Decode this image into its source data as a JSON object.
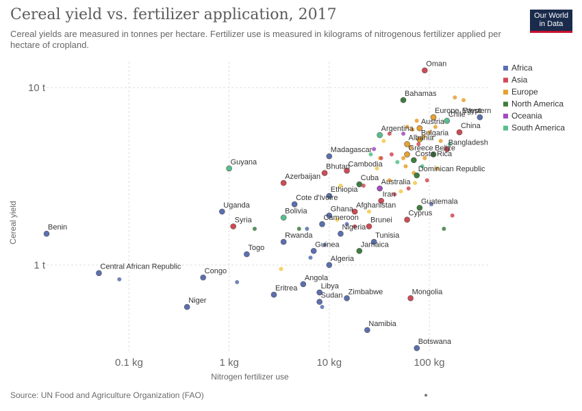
{
  "header": {
    "title": "Cereal yield vs. fertilizer application, 2017",
    "subtitle": "Cereal yields are measured in tonnes per hectare. Fertilizer use is measured in kilograms of nitrogenous fertilizer applied per hectare of cropland.",
    "logo_line1": "Our World",
    "logo_line2": "in Data"
  },
  "footer": {
    "source": "Source: UN Food and Agriculture Organization (FAO)"
  },
  "colors": {
    "Africa": "#5b6fb0",
    "Asia": "#d04a55",
    "Europe": "#e8a030",
    "North America": "#3f7d3f",
    "Oceania": "#a04cc0",
    "South America": "#55c08a",
    "Europe_light": "#f2c94c"
  },
  "chart_data": {
    "type": "scatter",
    "title": "Cereal yield vs. fertilizer application, 2017",
    "xlabel": "Nitrogen fertilizer use",
    "ylabel": "Cereal yield",
    "x_scale": "log",
    "y_scale": "log",
    "xlim": [
      0.015,
      400
    ],
    "ylim": [
      0.32,
      14
    ],
    "x_ticks": [
      {
        "value": 0.1,
        "label": "0.1 kg"
      },
      {
        "value": 1,
        "label": "1 kg"
      },
      {
        "value": 10,
        "label": "10 kg"
      },
      {
        "value": 100,
        "label": "100 kg"
      }
    ],
    "y_ticks": [
      {
        "value": 1,
        "label": "1 t"
      },
      {
        "value": 10,
        "label": "10 t"
      }
    ],
    "legend": [
      "Africa",
      "Asia",
      "Europe",
      "North America",
      "Oceania",
      "South America"
    ],
    "legend_position": "right",
    "labeled_points": [
      {
        "name": "Oman",
        "x": 90,
        "y": 12.5,
        "group": "Asia"
      },
      {
        "name": "Bahamas",
        "x": 55,
        "y": 8.5,
        "group": "North America"
      },
      {
        "name": "Egypt",
        "x": 320,
        "y": 6.8,
        "group": "Africa"
      },
      {
        "name": "Europe, Western",
        "x": 110,
        "y": 6.8,
        "group": "Europe"
      },
      {
        "name": "Chile",
        "x": 150,
        "y": 6.5,
        "group": "South America"
      },
      {
        "name": "Austria",
        "x": 80,
        "y": 5.9,
        "group": "Europe"
      },
      {
        "name": "China",
        "x": 200,
        "y": 5.6,
        "group": "Asia"
      },
      {
        "name": "Argentina",
        "x": 32,
        "y": 5.4,
        "group": "South America"
      },
      {
        "name": "Bulgaria",
        "x": 80,
        "y": 5.1,
        "group": "Europe"
      },
      {
        "name": "Albania",
        "x": 60,
        "y": 4.8,
        "group": "Europe"
      },
      {
        "name": "Bangladesh",
        "x": 150,
        "y": 4.5,
        "group": "Asia"
      },
      {
        "name": "Madagascar",
        "x": 10,
        "y": 4.1,
        "group": "Africa"
      },
      {
        "name": "Greece",
        "x": 60,
        "y": 4.2,
        "group": "Europe"
      },
      {
        "name": "Belize",
        "x": 110,
        "y": 4.2,
        "group": "North America"
      },
      {
        "name": "Costa Rica",
        "x": 70,
        "y": 3.9,
        "group": "North America"
      },
      {
        "name": "Guyana",
        "x": 1.0,
        "y": 3.5,
        "group": "South America"
      },
      {
        "name": "Cambodia",
        "x": 15,
        "y": 3.4,
        "group": "Asia"
      },
      {
        "name": "Bhutan",
        "x": 9,
        "y": 3.3,
        "group": "Asia"
      },
      {
        "name": "Dominican Republic",
        "x": 75,
        "y": 3.2,
        "group": "North America"
      },
      {
        "name": "Azerbaijan",
        "x": 3.5,
        "y": 2.9,
        "group": "Asia"
      },
      {
        "name": "Cuba",
        "x": 20,
        "y": 2.85,
        "group": "North America"
      },
      {
        "name": "Australia",
        "x": 32,
        "y": 2.7,
        "group": "Oceania"
      },
      {
        "name": "Ethiopia",
        "x": 10,
        "y": 2.45,
        "group": "Africa"
      },
      {
        "name": "Iran",
        "x": 33,
        "y": 2.3,
        "group": "Asia"
      },
      {
        "name": "Cote d'Ivoire",
        "x": 4.5,
        "y": 2.2,
        "group": "Africa"
      },
      {
        "name": "Guatemala",
        "x": 80,
        "y": 2.1,
        "group": "North America"
      },
      {
        "name": "Uganda",
        "x": 0.85,
        "y": 2.0,
        "group": "Africa"
      },
      {
        "name": "Afghanistan",
        "x": 18,
        "y": 2.0,
        "group": "Asia"
      },
      {
        "name": "Ghana",
        "x": 10,
        "y": 1.9,
        "group": "Africa"
      },
      {
        "name": "Bolivia",
        "x": 3.5,
        "y": 1.85,
        "group": "South America"
      },
      {
        "name": "Cyprus",
        "x": 60,
        "y": 1.8,
        "group": "Asia"
      },
      {
        "name": "Cameroon",
        "x": 8.5,
        "y": 1.7,
        "group": "Africa"
      },
      {
        "name": "Brunei",
        "x": 25,
        "y": 1.65,
        "group": "Asia"
      },
      {
        "name": "Syria",
        "x": 1.1,
        "y": 1.65,
        "group": "Asia"
      },
      {
        "name": "Nigeria",
        "x": 13,
        "y": 1.5,
        "group": "Africa"
      },
      {
        "name": "Benin",
        "x": 0.015,
        "y": 1.5,
        "group": "Africa"
      },
      {
        "name": "Tunisia",
        "x": 28,
        "y": 1.35,
        "group": "Africa"
      },
      {
        "name": "Rwanda",
        "x": 3.5,
        "y": 1.35,
        "group": "Africa"
      },
      {
        "name": "Guinea",
        "x": 7,
        "y": 1.2,
        "group": "Africa"
      },
      {
        "name": "Jamaica",
        "x": 20,
        "y": 1.2,
        "group": "North America"
      },
      {
        "name": "Togo",
        "x": 1.5,
        "y": 1.15,
        "group": "Africa"
      },
      {
        "name": "Algeria",
        "x": 10,
        "y": 1.0,
        "group": "Africa"
      },
      {
        "name": "Central African Republic",
        "x": 0.05,
        "y": 0.9,
        "group": "Africa"
      },
      {
        "name": "Congo",
        "x": 0.55,
        "y": 0.85,
        "group": "Africa"
      },
      {
        "name": "Angola",
        "x": 5.5,
        "y": 0.78,
        "group": "Africa"
      },
      {
        "name": "Libya",
        "x": 8,
        "y": 0.7,
        "group": "Africa"
      },
      {
        "name": "Eritrea",
        "x": 2.8,
        "y": 0.68,
        "group": "Africa"
      },
      {
        "name": "Zimbabwe",
        "x": 15,
        "y": 0.65,
        "group": "Africa"
      },
      {
        "name": "Mongolia",
        "x": 65,
        "y": 0.65,
        "group": "Asia"
      },
      {
        "name": "Sudan",
        "x": 8,
        "y": 0.62,
        "group": "Africa"
      },
      {
        "name": "Niger",
        "x": 0.38,
        "y": 0.58,
        "group": "Africa"
      },
      {
        "name": "Namibia",
        "x": 24,
        "y": 0.43,
        "group": "Africa"
      },
      {
        "name": "Botswana",
        "x": 75,
        "y": 0.34,
        "group": "Africa"
      }
    ],
    "unlabeled_points": [
      {
        "x": 0.08,
        "y": 0.83,
        "group": "Africa"
      },
      {
        "x": 1.2,
        "y": 0.8,
        "group": "Africa"
      },
      {
        "x": 1.8,
        "y": 1.6,
        "group": "North America"
      },
      {
        "x": 3.3,
        "y": 0.95,
        "group": "Europe"
      },
      {
        "x": 5.0,
        "y": 1.6,
        "group": "North America"
      },
      {
        "x": 6.0,
        "y": 1.6,
        "group": "Africa"
      },
      {
        "x": 6.5,
        "y": 1.1,
        "group": "Africa"
      },
      {
        "x": 8.5,
        "y": 0.58,
        "group": "Africa"
      },
      {
        "x": 9,
        "y": 1.3,
        "group": "Africa"
      },
      {
        "x": 10,
        "y": 1.0,
        "group": "Africa"
      },
      {
        "x": 12,
        "y": 1.8,
        "group": "Europe"
      },
      {
        "x": 13,
        "y": 2.8,
        "group": "Europe"
      },
      {
        "x": 15,
        "y": 1.7,
        "group": "Africa"
      },
      {
        "x": 18,
        "y": 1.65,
        "group": "Asia"
      },
      {
        "x": 22,
        "y": 2.8,
        "group": "Asia"
      },
      {
        "x": 25,
        "y": 2.0,
        "group": "Europe"
      },
      {
        "x": 28,
        "y": 4.5,
        "group": "Oceania"
      },
      {
        "x": 30,
        "y": 3.5,
        "group": "Europe"
      },
      {
        "x": 32,
        "y": 4.0,
        "group": "Europe"
      },
      {
        "x": 35,
        "y": 5.0,
        "group": "Europe"
      },
      {
        "x": 40,
        "y": 3.0,
        "group": "Europe"
      },
      {
        "x": 42,
        "y": 4.2,
        "group": "Asia"
      },
      {
        "x": 45,
        "y": 2.5,
        "group": "Asia"
      },
      {
        "x": 48,
        "y": 3.8,
        "group": "South America"
      },
      {
        "x": 52,
        "y": 2.6,
        "group": "Europe"
      },
      {
        "x": 55,
        "y": 5.5,
        "group": "Oceania"
      },
      {
        "x": 58,
        "y": 3.6,
        "group": "Europe"
      },
      {
        "x": 62,
        "y": 2.7,
        "group": "Asia"
      },
      {
        "x": 65,
        "y": 4.6,
        "group": "Europe"
      },
      {
        "x": 68,
        "y": 5.8,
        "group": "Europe"
      },
      {
        "x": 70,
        "y": 3.3,
        "group": "Europe"
      },
      {
        "x": 72,
        "y": 2.9,
        "group": "Europe"
      },
      {
        "x": 75,
        "y": 6.5,
        "group": "Europe"
      },
      {
        "x": 78,
        "y": 4.8,
        "group": "Asia"
      },
      {
        "x": 85,
        "y": 3.6,
        "group": "South America"
      },
      {
        "x": 88,
        "y": 5.3,
        "group": "Europe"
      },
      {
        "x": 90,
        "y": 4.0,
        "group": "Europe"
      },
      {
        "x": 95,
        "y": 3.0,
        "group": "Asia"
      },
      {
        "x": 100,
        "y": 5.6,
        "group": "Europe"
      },
      {
        "x": 105,
        "y": 2.2,
        "group": "Africa"
      },
      {
        "x": 115,
        "y": 6.0,
        "group": "Europe"
      },
      {
        "x": 120,
        "y": 3.5,
        "group": "Europe"
      },
      {
        "x": 130,
        "y": 5.0,
        "group": "Europe"
      },
      {
        "x": 140,
        "y": 1.6,
        "group": "North America"
      },
      {
        "x": 160,
        "y": 4.8,
        "group": "South America"
      },
      {
        "x": 170,
        "y": 1.9,
        "group": "Asia"
      },
      {
        "x": 180,
        "y": 8.8,
        "group": "Europe"
      },
      {
        "x": 220,
        "y": 8.5,
        "group": "Europe"
      },
      {
        "x": 40,
        "y": 5.5,
        "group": "Asia"
      },
      {
        "x": 55,
        "y": 4.0,
        "group": "Europe"
      },
      {
        "x": 33,
        "y": 4.0,
        "group": "Asia"
      },
      {
        "x": 60,
        "y": 6.0,
        "group": "Europe"
      },
      {
        "x": 26,
        "y": 4.2,
        "group": "South America"
      }
    ]
  }
}
